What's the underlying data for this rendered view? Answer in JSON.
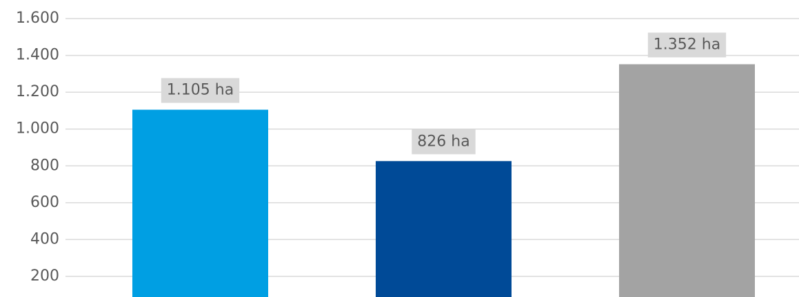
{
  "chart_data": {
    "type": "bar",
    "categories": [
      null,
      null,
      null
    ],
    "series": [
      {
        "values": [
          1105,
          826,
          1352
        ],
        "value_labels": [
          "1.105 ha",
          "826 ha",
          "1.352 ha"
        ],
        "colors": [
          "#009fe3",
          "#004a97",
          "#a3a3a3"
        ]
      }
    ],
    "ylim": [
      88,
      1600
    ],
    "yticks": [
      {
        "value": 200,
        "label": "200"
      },
      {
        "value": 400,
        "label": "400"
      },
      {
        "value": 600,
        "label": "600"
      },
      {
        "value": 800,
        "label": "800"
      },
      {
        "value": 1000,
        "label": "1.000"
      },
      {
        "value": 1200,
        "label": "1.200"
      },
      {
        "value": 1400,
        "label": "1.400"
      },
      {
        "value": 1600,
        "label": "1.600"
      }
    ],
    "grid": true
  }
}
